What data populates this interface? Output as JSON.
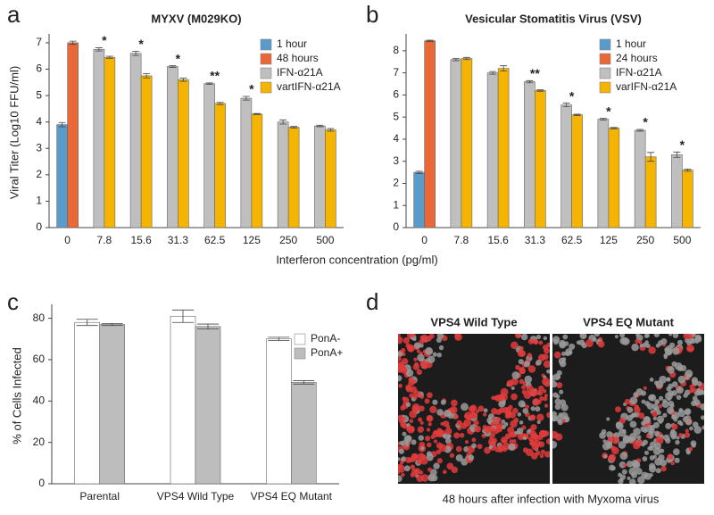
{
  "chart_data": [
    {
      "type": "bar",
      "panel": "a",
      "title": "MYXV (M029KO)",
      "ylabel": "Viral Titer (Log10 FFU/ml)",
      "xlabel": "Interferon concentration (pg/ml)",
      "categories": [
        "0",
        "7.8",
        "15.6",
        "31.3",
        "62.5",
        "125",
        "250",
        "500"
      ],
      "series": [
        {
          "name": "1 hour",
          "color": "#5b9bc9",
          "values": [
            3.9,
            null,
            null,
            null,
            null,
            null,
            null,
            null
          ],
          "errors": [
            0.08,
            null,
            null,
            null,
            null,
            null,
            null,
            null
          ]
        },
        {
          "name": "48 hours",
          "color": "#e8683a",
          "values": [
            7.0,
            null,
            null,
            null,
            null,
            null,
            null,
            null
          ],
          "errors": [
            0.06,
            null,
            null,
            null,
            null,
            null,
            null,
            null
          ]
        },
        {
          "name": "IFN-α21A",
          "color": "#bfbfbf",
          "values": [
            null,
            6.75,
            6.6,
            6.1,
            5.45,
            4.9,
            4.0,
            3.85
          ],
          "errors": [
            null,
            0.06,
            0.08,
            0.03,
            0.03,
            0.07,
            0.08,
            0.03
          ]
        },
        {
          "name": "vartIFN-α21A",
          "color": "#f5b400",
          "values": [
            null,
            6.45,
            5.75,
            5.6,
            4.7,
            4.3,
            3.8,
            3.7
          ],
          "errors": [
            null,
            0.04,
            0.08,
            0.06,
            0.04,
            0.02,
            0.03,
            0.05
          ]
        }
      ],
      "annotations": [
        {
          "category": "7.8",
          "text": "*"
        },
        {
          "category": "15.6",
          "text": "*"
        },
        {
          "category": "31.3",
          "text": "*"
        },
        {
          "category": "62.5",
          "text": "**"
        },
        {
          "category": "125",
          "text": "*"
        }
      ],
      "ylim": [
        0,
        7.2
      ],
      "yticks": [
        0,
        1,
        2,
        3,
        4,
        5,
        6,
        7
      ],
      "legend": "upper right"
    },
    {
      "type": "bar",
      "panel": "b",
      "title": "Vesicular Stomatitis Virus (VSV)",
      "categories": [
        "0",
        "7.8",
        "15.6",
        "31.3",
        "62.5",
        "125",
        "250",
        "500"
      ],
      "series": [
        {
          "name": "1 hour",
          "color": "#5b9bc9",
          "values": [
            2.5,
            null,
            null,
            null,
            null,
            null,
            null,
            null
          ],
          "errors": [
            0.05,
            null,
            null,
            null,
            null,
            null,
            null,
            null
          ]
        },
        {
          "name": "24 hours",
          "color": "#e8683a",
          "values": [
            8.45,
            null,
            null,
            null,
            null,
            null,
            null,
            null
          ],
          "errors": [
            0.03,
            null,
            null,
            null,
            null,
            null,
            null,
            null
          ]
        },
        {
          "name": "IFN-α21A",
          "color": "#bfbfbf",
          "values": [
            null,
            7.6,
            7.0,
            6.6,
            5.55,
            4.9,
            4.4,
            3.3
          ],
          "errors": [
            null,
            0.05,
            0.06,
            0.05,
            0.08,
            0.04,
            0.04,
            0.12
          ]
        },
        {
          "name": "varIFN-α21A",
          "color": "#f5b400",
          "values": [
            null,
            7.65,
            7.2,
            6.2,
            5.1,
            4.5,
            3.2,
            2.6
          ],
          "errors": [
            null,
            0.05,
            0.12,
            0.03,
            0.03,
            0.03,
            0.2,
            0.05
          ]
        }
      ],
      "annotations": [
        {
          "category": "31.3",
          "text": "**"
        },
        {
          "category": "62.5",
          "text": "*"
        },
        {
          "category": "125",
          "text": "*"
        },
        {
          "category": "250",
          "text": "*"
        },
        {
          "category": "500",
          "text": "*"
        }
      ],
      "ylim": [
        0,
        8.6
      ],
      "yticks": [
        0,
        1,
        2,
        3,
        4,
        5,
        6,
        7,
        8
      ],
      "legend": "upper right"
    },
    {
      "type": "bar",
      "panel": "c",
      "ylabel": "% of Cells Infected",
      "categories": [
        "Parental",
        "VPS4 Wild Type",
        "VPS4 EQ Mutant"
      ],
      "series": [
        {
          "name": "PonA-",
          "color": "#ffffff",
          "values": [
            78,
            81,
            70
          ],
          "errors": [
            1.5,
            3,
            0.8
          ]
        },
        {
          "name": "PonA+",
          "color": "#bdbdbd",
          "values": [
            77,
            76,
            49
          ],
          "errors": [
            0.5,
            1.2,
            0.8
          ]
        }
      ],
      "ylim": [
        0,
        85
      ],
      "yticks": [
        0,
        20,
        40,
        60,
        80
      ],
      "legend": "upper right"
    }
  ],
  "images": {
    "panel": "d",
    "titles": [
      "VPS4 Wild Type",
      "VPS4 EQ Mutant"
    ],
    "caption": "48 hours after infection with Myxoma virus"
  }
}
